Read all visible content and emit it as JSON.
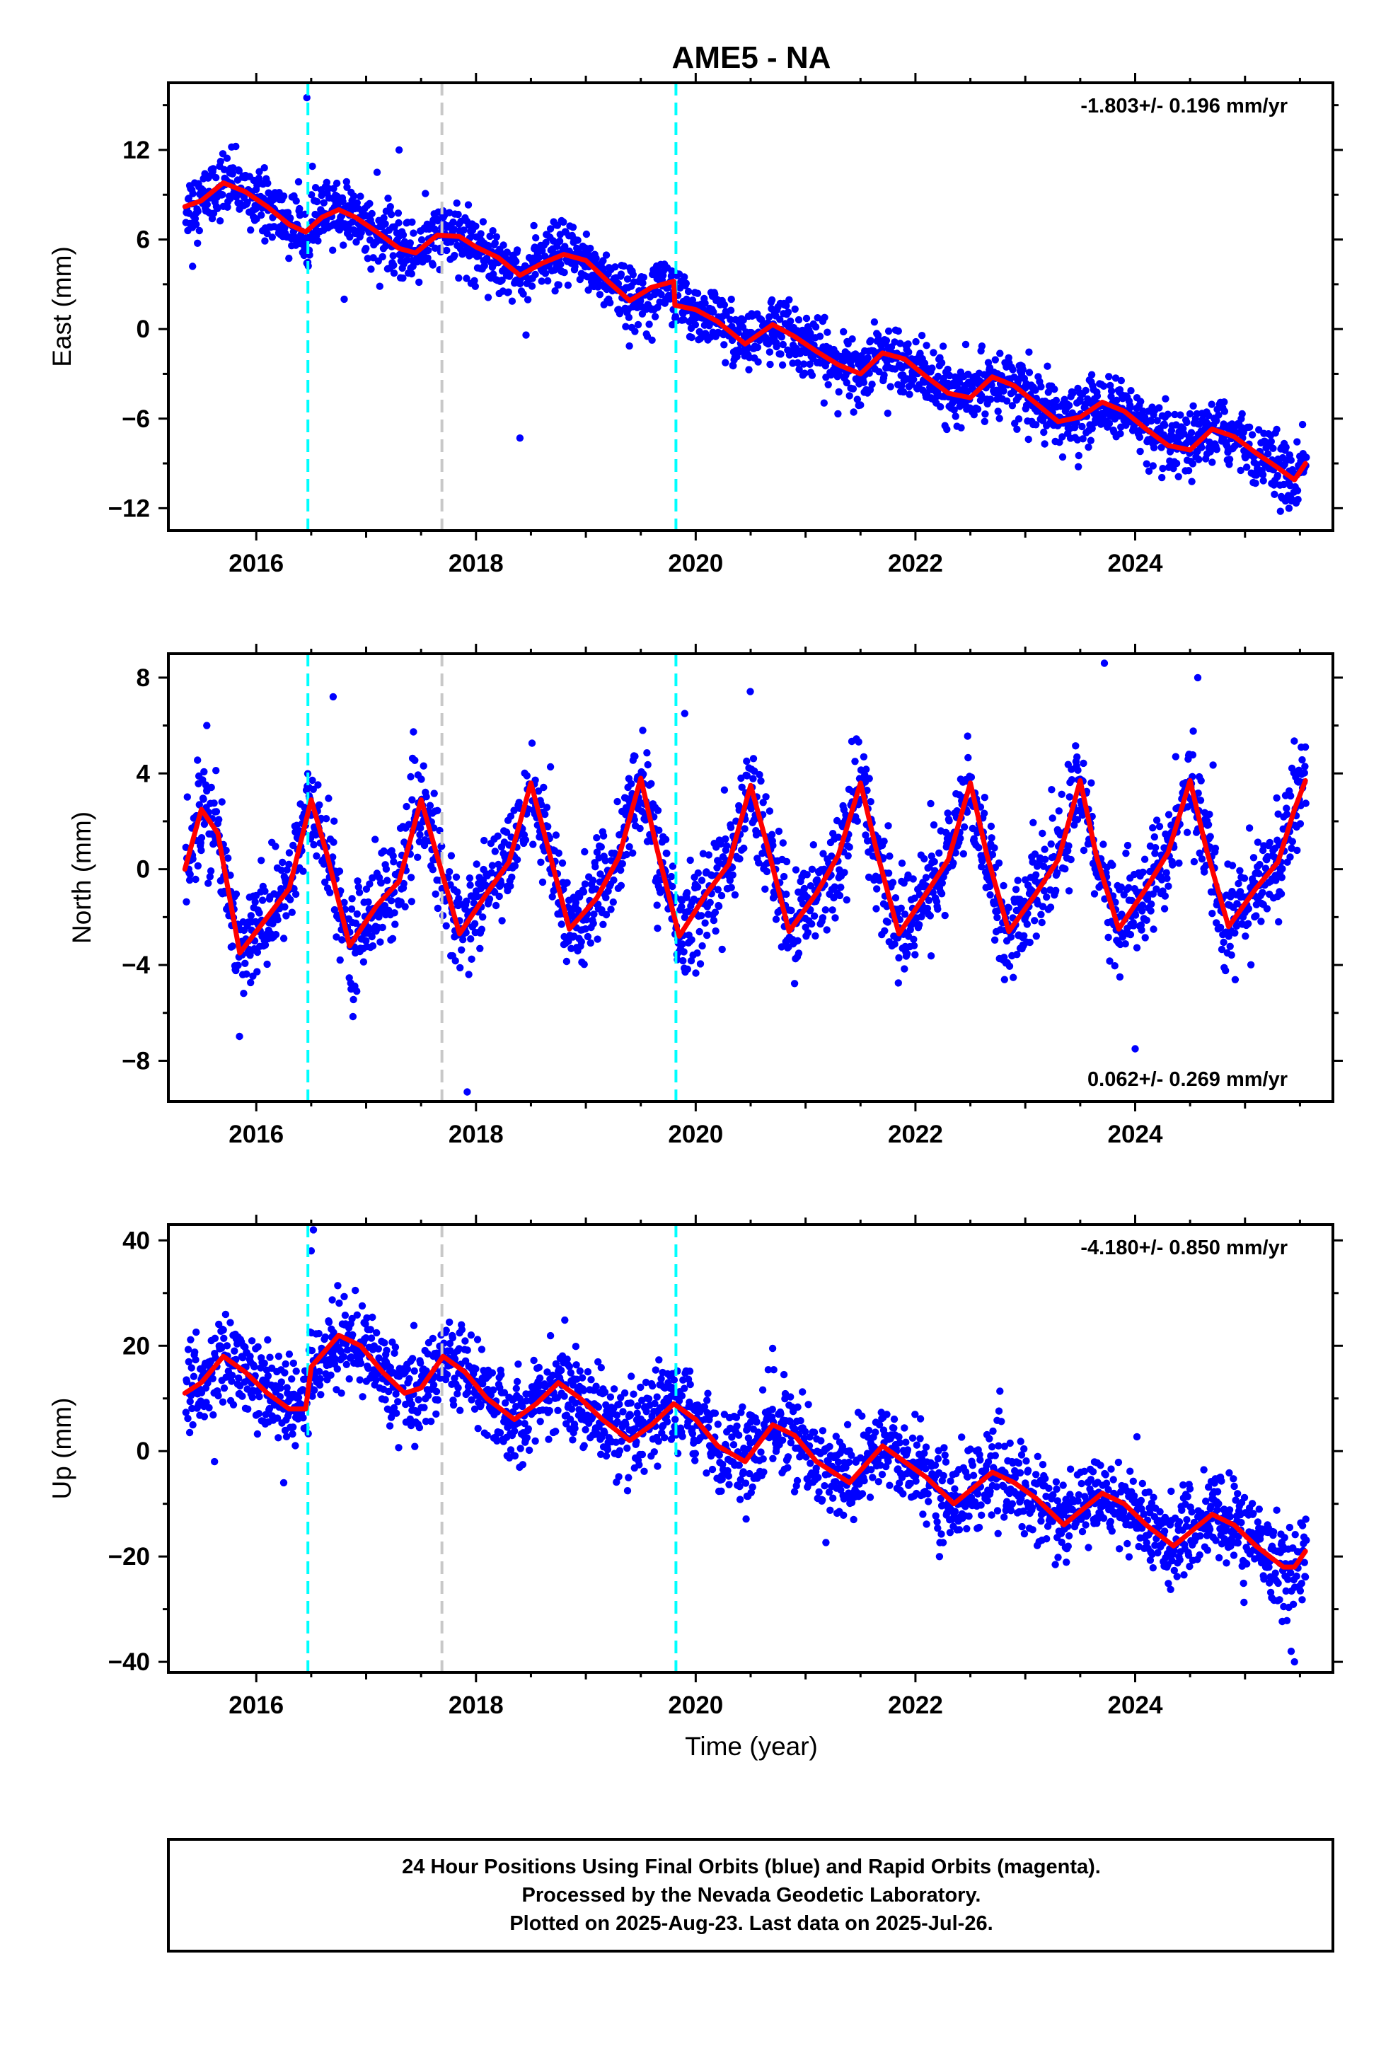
{
  "title": "AME5 - NA",
  "xlabel": "Time (year)",
  "footer": {
    "line1": "24 Hour Positions Using Final Orbits (blue) and Rapid Orbits (magenta).",
    "line2": "Processed by the Nevada Geodetic Laboratory.",
    "line3": "Plotted on 2025-Aug-23. Last data on 2025-Jul-26."
  },
  "colors": {
    "points": "#0000ff",
    "model": "#ff0000",
    "equipment_change": "#00ffff",
    "other_event": "#c8c8c8"
  },
  "chart_data": [
    {
      "type": "scatter",
      "name": "east",
      "ylabel": "East (mm)",
      "rate": "-1.803+/- 0.196 mm/yr",
      "rate_position": "top-right",
      "xlim": [
        2015.2,
        2025.8
      ],
      "ylim": [
        -13.5,
        16.5
      ],
      "yticks": [
        -12,
        -6,
        0,
        6,
        12
      ],
      "ytick_labels": [
        "−12",
        "−6",
        "0",
        "6",
        "12"
      ],
      "xticks": [
        2016,
        2018,
        2020,
        2022,
        2024
      ],
      "xtick_labels": [
        "2016",
        "2018",
        "2020",
        "2022",
        "2024"
      ],
      "grid": false,
      "model": {
        "x": [
          2015.35,
          2015.5,
          2015.7,
          2015.9,
          2016.1,
          2016.3,
          2016.45,
          2016.6,
          2016.75,
          2016.9,
          2017.1,
          2017.3,
          2017.45,
          2017.65,
          2017.85,
          2018.0,
          2018.2,
          2018.4,
          2018.6,
          2018.8,
          2019.0,
          2019.2,
          2019.4,
          2019.6,
          2019.8,
          2019.81,
          2020.0,
          2020.2,
          2020.45,
          2020.7,
          2020.9,
          2021.1,
          2021.3,
          2021.5,
          2021.7,
          2021.9,
          2022.1,
          2022.3,
          2022.5,
          2022.7,
          2022.9,
          2023.1,
          2023.3,
          2023.5,
          2023.7,
          2023.9,
          2024.1,
          2024.3,
          2024.5,
          2024.7,
          2024.9,
          2025.1,
          2025.3,
          2025.45,
          2025.55
        ],
        "y": [
          8.2,
          8.6,
          9.8,
          9.2,
          8.2,
          7.0,
          6.5,
          7.5,
          8.0,
          7.5,
          6.5,
          5.4,
          5.1,
          6.3,
          6.2,
          5.5,
          4.8,
          3.6,
          4.4,
          5.0,
          4.6,
          3.2,
          1.9,
          2.8,
          3.2,
          1.6,
          1.3,
          0.5,
          -1.0,
          0.3,
          -0.5,
          -1.5,
          -2.4,
          -3.0,
          -1.6,
          -2.0,
          -3.2,
          -4.3,
          -4.6,
          -3.2,
          -3.8,
          -5.0,
          -6.2,
          -5.9,
          -4.9,
          -5.5,
          -6.7,
          -7.8,
          -8.1,
          -6.7,
          -7.2,
          -8.3,
          -9.3,
          -10.1,
          -9.0
        ]
      },
      "outliers": {
        "x": [
          2016.46,
          2017.3,
          2018.4,
          2016.8,
          2015.42,
          2017.1,
          2025.4
        ],
        "y": [
          15.5,
          12.0,
          -7.3,
          2.0,
          4.2,
          10.5,
          -12.0
        ]
      },
      "scatter_noise_sd": 1.05,
      "equipment_change_years": [
        2016.47,
        2019.82
      ],
      "other_event_years": [
        2017.69
      ]
    },
    {
      "type": "scatter",
      "name": "north",
      "ylabel": "North (mm)",
      "rate": "0.062+/- 0.269 mm/yr",
      "rate_position": "bottom-right",
      "xlim": [
        2015.2,
        2025.8
      ],
      "ylim": [
        -9.7,
        9.0
      ],
      "yticks": [
        -8,
        -4,
        0,
        4,
        8
      ],
      "ytick_labels": [
        "−8",
        "−4",
        "0",
        "4",
        "8"
      ],
      "xticks": [
        2016,
        2018,
        2020,
        2022,
        2024
      ],
      "xtick_labels": [
        "2016",
        "2018",
        "2020",
        "2022",
        "2024"
      ],
      "grid": false,
      "model": {
        "x": [
          2015.35,
          2015.5,
          2015.65,
          2015.85,
          2016.1,
          2016.3,
          2016.5,
          2016.65,
          2016.85,
          2017.1,
          2017.3,
          2017.5,
          2017.65,
          2017.85,
          2018.1,
          2018.3,
          2018.5,
          2018.65,
          2018.85,
          2019.1,
          2019.3,
          2019.5,
          2019.65,
          2019.85,
          2020.1,
          2020.3,
          2020.5,
          2020.65,
          2020.85,
          2021.1,
          2021.3,
          2021.5,
          2021.65,
          2021.85,
          2022.1,
          2022.3,
          2022.5,
          2022.65,
          2022.85,
          2023.1,
          2023.3,
          2023.5,
          2023.65,
          2023.85,
          2024.1,
          2024.3,
          2024.5,
          2024.65,
          2024.85,
          2025.1,
          2025.3,
          2025.45,
          2025.55
        ],
        "y": [
          0.0,
          2.5,
          1.5,
          -3.5,
          -2.0,
          -0.8,
          2.9,
          0.5,
          -3.2,
          -1.5,
          -0.5,
          2.9,
          0.5,
          -2.7,
          -1.0,
          0.3,
          3.6,
          1.0,
          -2.5,
          -1.2,
          0.5,
          3.8,
          0.8,
          -2.8,
          -1.0,
          0.2,
          3.5,
          1.0,
          -2.6,
          -1.0,
          0.6,
          3.6,
          0.7,
          -2.7,
          -1.0,
          0.4,
          3.6,
          0.6,
          -2.6,
          -1.0,
          0.4,
          3.7,
          0.5,
          -2.5,
          -0.8,
          0.7,
          3.7,
          0.8,
          -2.4,
          -0.8,
          0.3,
          2.5,
          3.7
        ]
      },
      "outliers": {
        "x": [
          2023.72,
          2024.57,
          2017.92,
          2015.55,
          2016.7,
          2024.0,
          2019.9
        ],
        "y": [
          8.6,
          8.0,
          -9.3,
          6.0,
          7.2,
          -7.5,
          6.5
        ]
      },
      "scatter_noise_sd": 1.05,
      "equipment_change_years": [
        2016.47,
        2019.82
      ],
      "other_event_years": [
        2017.69
      ]
    },
    {
      "type": "scatter",
      "name": "up",
      "ylabel": "Up (mm)",
      "rate": "-4.180+/- 0.850 mm/yr",
      "rate_position": "top-right",
      "xlim": [
        2015.2,
        2025.8
      ],
      "ylim": [
        -42,
        43
      ],
      "yticks": [
        -40,
        -20,
        0,
        20,
        40
      ],
      "ytick_labels": [
        "−40",
        "−20",
        "0",
        "20",
        "40"
      ],
      "xticks": [
        2016,
        2018,
        2020,
        2022,
        2024
      ],
      "xtick_labels": [
        "2016",
        "2018",
        "2020",
        "2022",
        "2024"
      ],
      "grid": false,
      "model": {
        "x": [
          2015.35,
          2015.5,
          2015.7,
          2015.9,
          2016.1,
          2016.3,
          2016.45,
          2016.5,
          2016.75,
          2016.95,
          2017.15,
          2017.35,
          2017.5,
          2017.7,
          2017.9,
          2018.1,
          2018.35,
          2018.55,
          2018.75,
          2018.95,
          2019.15,
          2019.4,
          2019.6,
          2019.8,
          2020.0,
          2020.2,
          2020.45,
          2020.7,
          2020.9,
          2021.1,
          2021.4,
          2021.7,
          2021.9,
          2022.1,
          2022.35,
          2022.7,
          2022.9,
          2023.1,
          2023.35,
          2023.7,
          2023.9,
          2024.1,
          2024.35,
          2024.7,
          2024.9,
          2025.1,
          2025.35,
          2025.45,
          2025.55
        ],
        "y": [
          11,
          13,
          18,
          15,
          11,
          8,
          8,
          16,
          22,
          20,
          15,
          11,
          12,
          18,
          15,
          10,
          6,
          9,
          13,
          10,
          6,
          2,
          5,
          9,
          6,
          1,
          -2,
          5,
          3,
          -2,
          -6,
          1,
          -2,
          -5,
          -10,
          -4,
          -6,
          -9,
          -14,
          -8,
          -10,
          -14,
          -18,
          -12,
          -14,
          -18,
          -22,
          -22,
          -19
        ]
      },
      "outliers": {
        "x": [
          2016.52,
          2016.5,
          2020.7,
          2025.42,
          2025.45,
          2015.62,
          2016.25
        ],
        "y": [
          42,
          38,
          19.5,
          -38,
          -40,
          -2,
          -6
        ]
      },
      "scatter_noise_sd": 4.2,
      "equipment_change_years": [
        2016.47,
        2019.82
      ],
      "other_event_years": [
        2017.69
      ]
    }
  ]
}
